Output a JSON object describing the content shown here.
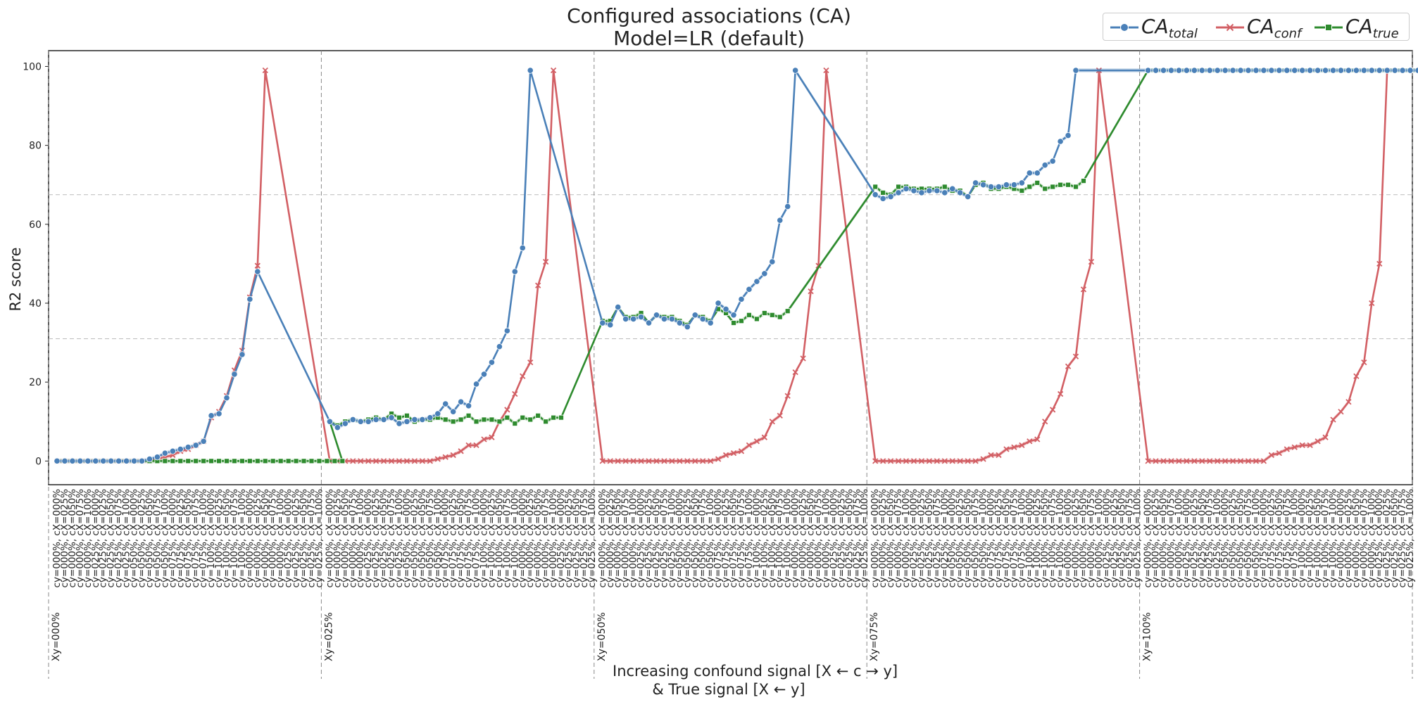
{
  "title": {
    "line1": "Configured associations (CA)",
    "line2": "Model=LR (default)"
  },
  "colors": {
    "total": "#4a80b8",
    "conf": "#d25f64",
    "true": "#2e8b2e",
    "grid": "#bbbbbb",
    "axis": "#222222"
  },
  "chart_data": {
    "type": "line",
    "ylabel": "R2 score",
    "xlabel_line1": "Increasing confound signal [X ← c → y]",
    "xlabel_line2": "&   True signal  [X ← y]",
    "ylim": [
      -6,
      104
    ],
    "yticks": [
      0,
      20,
      40,
      60,
      80,
      100
    ],
    "grid": "dashed horizontal at 31 and 67.5; dashed vertical group separators",
    "legend_position": "top-right",
    "hgrid": [
      31,
      67.5
    ],
    "cy_cycle": [
      "000",
      "025",
      "050",
      "075",
      "100"
    ],
    "cx_cycle": [
      "000",
      "025",
      "050",
      "075",
      "100"
    ],
    "xy_groups": [
      "Xy=000%",
      "Xy=025%",
      "Xy=050%",
      "Xy=075%",
      "Xy=100%"
    ],
    "series": [
      {
        "key": "total",
        "name": "CA",
        "sub": "total",
        "marker": "circle",
        "values": [
          [
            0,
            0,
            0,
            0,
            0,
            0,
            0,
            0,
            0,
            0,
            0,
            0,
            0.5,
            1,
            2,
            2.5,
            3,
            3.5,
            4,
            5,
            11.5,
            12,
            16,
            22,
            27,
            41,
            48
          ],
          [
            10,
            8.5,
            9.5,
            10.5,
            10,
            10,
            10.5,
            10.5,
            11,
            9.5,
            10,
            10.5,
            10.5,
            11,
            12,
            14.5,
            12.5,
            15,
            14,
            19.5,
            22,
            25,
            29,
            33,
            48,
            54,
            99
          ],
          [
            35,
            34.5,
            39,
            36,
            36,
            36.5,
            35,
            37,
            36,
            36,
            35,
            34,
            37,
            36,
            35,
            40,
            38.5,
            37,
            41,
            43.5,
            45.5,
            47.5,
            50.5,
            61,
            64.5,
            99
          ],
          [
            67.5,
            66.5,
            67,
            68,
            69,
            68.5,
            68,
            68.5,
            68.5,
            68,
            69,
            68,
            67,
            70.5,
            70,
            69.5,
            69.5,
            70,
            70,
            70.5,
            73,
            73,
            75,
            76,
            81,
            82.5,
            99
          ],
          [
            99,
            99,
            99,
            99,
            99,
            99,
            99,
            99,
            99,
            99,
            99,
            99,
            99,
            99,
            99,
            99,
            99,
            99,
            99,
            99,
            99,
            99,
            99,
            99,
            99,
            99,
            99,
            99,
            99,
            99,
            99,
            99,
            99,
            99,
            99,
            99
          ]
        ]
      },
      {
        "key": "conf",
        "name": "CA",
        "sub": "conf",
        "marker": "x",
        "values": [
          [
            0,
            0,
            0,
            0,
            0,
            0,
            0,
            0,
            0,
            0,
            0,
            0,
            0,
            0.5,
            1,
            1.5,
            2.5,
            3,
            4,
            5,
            11,
            12.5,
            16.5,
            23,
            28,
            41.5,
            49.5,
            99
          ],
          [
            0,
            0,
            0,
            0,
            0,
            0,
            0,
            0,
            0,
            0,
            0,
            0,
            0,
            0,
            0.5,
            1,
            1.5,
            2.5,
            4,
            4,
            5.5,
            6,
            10,
            13,
            17,
            21.5,
            25,
            44.5,
            50.5,
            99
          ],
          [
            0,
            0,
            0,
            0,
            0,
            0,
            0,
            0,
            0,
            0,
            0,
            0,
            0,
            0,
            0,
            0.5,
            1.5,
            2,
            2.5,
            4,
            5,
            6,
            10,
            11.5,
            16.5,
            22.5,
            26,
            43,
            49.5,
            99
          ],
          [
            0,
            0,
            0,
            0,
            0,
            0,
            0,
            0,
            0,
            0,
            0,
            0,
            0,
            0,
            0.5,
            1.5,
            1.5,
            3,
            3.5,
            4,
            5,
            5.5,
            10,
            13,
            17,
            24,
            26.5,
            43.5,
            50.5,
            99
          ],
          [
            0,
            0,
            0,
            0,
            0,
            0,
            0,
            0,
            0,
            0,
            0,
            0,
            0,
            0,
            0,
            0,
            1.5,
            2,
            3,
            3.5,
            4,
            4,
            5,
            6,
            10.5,
            12.5,
            15,
            21.5,
            25,
            40,
            50,
            99
          ]
        ]
      },
      {
        "key": "true",
        "name": "CA",
        "sub": "true",
        "marker": "square",
        "values": [
          [
            0,
            0,
            0,
            0,
            0,
            0,
            0,
            0,
            0,
            0,
            0,
            0,
            0,
            0,
            0,
            0,
            0,
            0,
            0,
            0,
            0,
            0,
            0,
            0,
            0,
            0,
            0,
            0,
            0,
            0,
            0,
            0,
            0,
            0,
            0,
            0,
            0,
            0
          ],
          [
            10,
            9,
            10,
            10.5,
            10,
            10.5,
            11,
            10.5,
            12,
            11,
            11.5,
            10,
            10.5,
            10.5,
            11,
            10.5,
            10,
            10.5,
            11.5,
            10,
            10.5,
            10.5,
            10,
            11,
            9.5,
            11,
            10.5,
            11.5,
            10,
            11,
            11
          ],
          [
            35.5,
            35.5,
            39,
            36.5,
            36.5,
            37.5,
            35,
            37,
            36.5,
            36.5,
            35.5,
            34.5,
            37,
            36.5,
            35.5,
            38.5,
            37.5,
            35,
            35.5,
            37,
            36,
            37.5,
            37,
            36.5,
            38
          ],
          [
            69.5,
            68,
            67.5,
            69.5,
            69.5,
            69,
            69,
            69,
            69,
            69.5,
            68.5,
            68.5,
            67,
            70,
            70.5,
            69,
            69,
            69.5,
            69,
            68.5,
            69.5,
            70.5,
            69,
            69.5,
            70,
            70,
            69.5,
            71
          ],
          [
            99,
            99,
            99,
            99,
            99,
            99,
            99,
            99,
            99,
            99,
            99,
            99,
            99,
            99,
            99,
            99,
            99,
            99,
            99,
            99,
            99,
            99,
            99,
            99,
            99,
            99,
            99,
            99,
            99,
            99,
            99,
            99,
            99,
            99,
            99,
            99,
            99,
            99
          ]
        ]
      }
    ]
  }
}
